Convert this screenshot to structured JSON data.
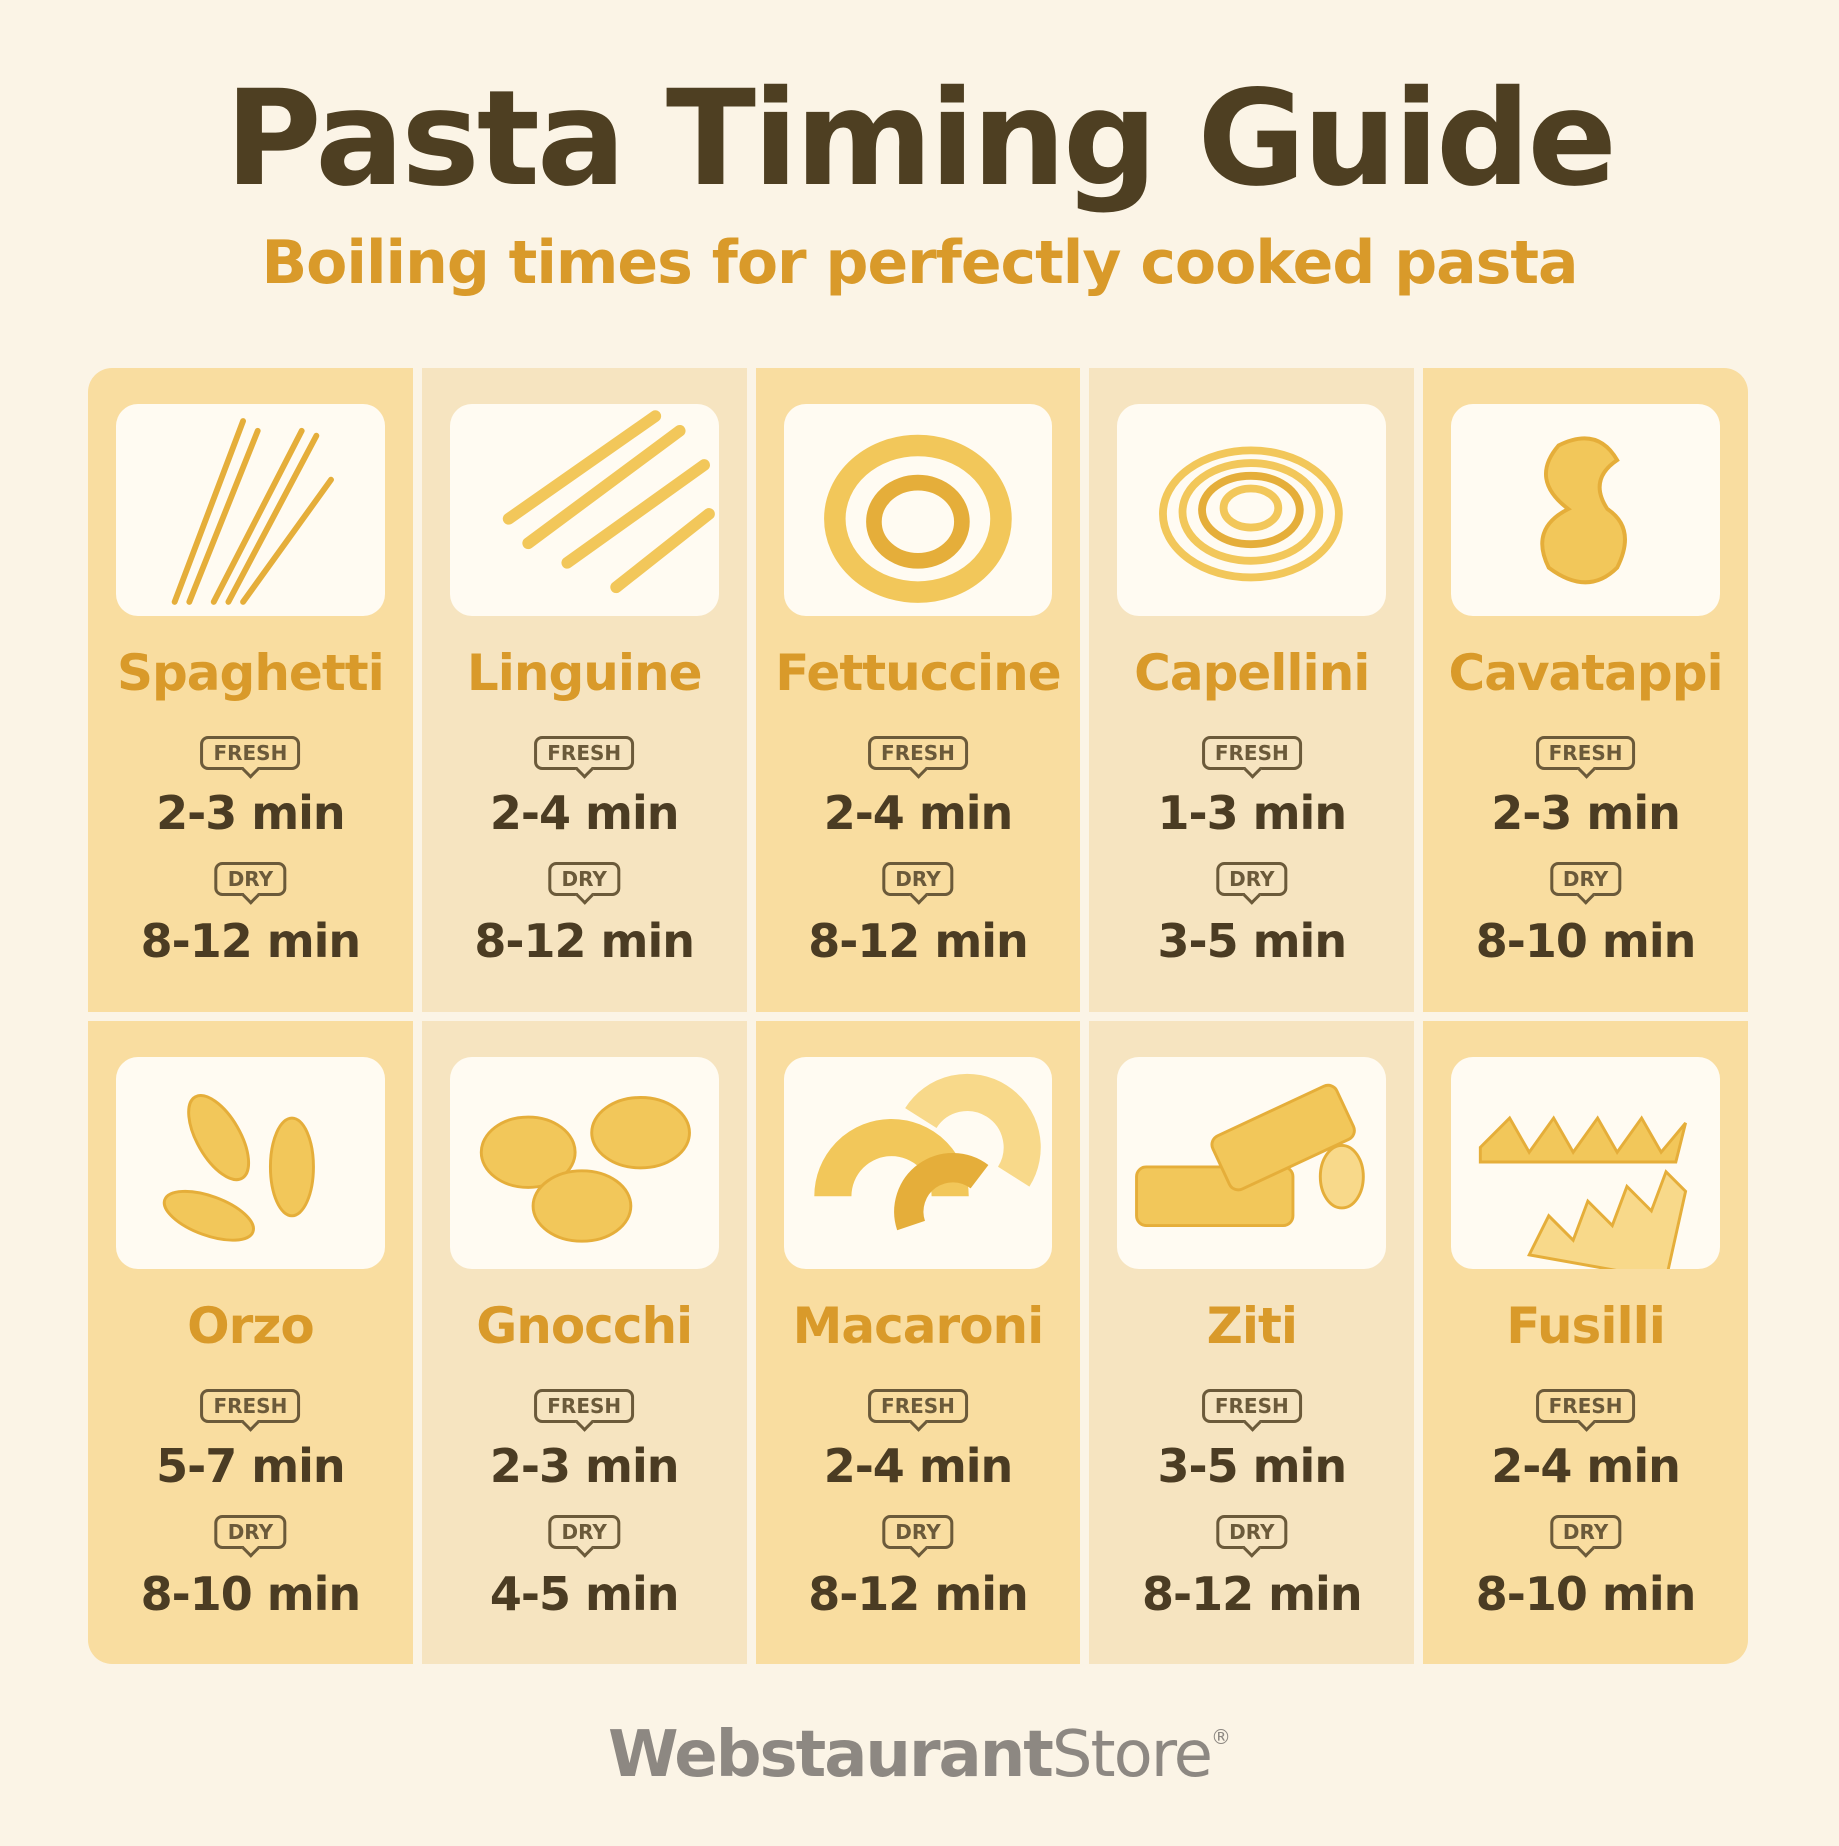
{
  "header": {
    "title": "Pasta Timing Guide",
    "subtitle": "Boiling times for perfectly cooked pasta"
  },
  "labels": {
    "fresh": "FRESH",
    "dry": "DRY"
  },
  "pastas": [
    {
      "name": "Spaghetti",
      "fresh": "2-3 min",
      "dry": "8-12 min"
    },
    {
      "name": "Linguine",
      "fresh": "2-4 min",
      "dry": "8-12 min"
    },
    {
      "name": "Fettuccine",
      "fresh": "2-4 min",
      "dry": "8-12 min"
    },
    {
      "name": "Capellini",
      "fresh": "1-3 min",
      "dry": "3-5 min"
    },
    {
      "name": "Cavatappi",
      "fresh": "2-3 min",
      "dry": "8-10 min"
    },
    {
      "name": "Orzo",
      "fresh": "5-7 min",
      "dry": "8-10 min"
    },
    {
      "name": "Gnocchi",
      "fresh": "2-3 min",
      "dry": "4-5 min"
    },
    {
      "name": "Macaroni",
      "fresh": "2-4 min",
      "dry": "8-12 min"
    },
    {
      "name": "Ziti",
      "fresh": "3-5 min",
      "dry": "8-12 min"
    },
    {
      "name": "Fusilli",
      "fresh": "2-4 min",
      "dry": "8-10 min"
    }
  ],
  "footer": {
    "brand_bold": "Webstaurant",
    "brand_light": "Store",
    "mark": "®"
  }
}
